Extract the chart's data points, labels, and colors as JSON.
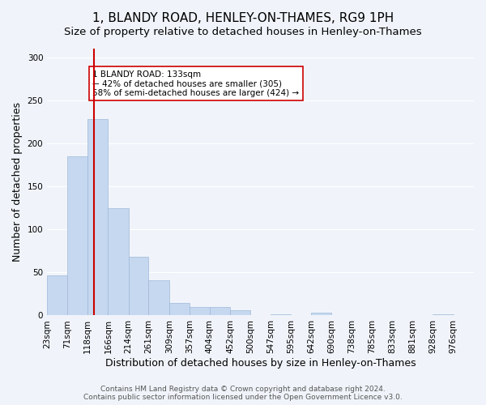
{
  "title": "1, BLANDY ROAD, HENLEY-ON-THAMES, RG9 1PH",
  "subtitle": "Size of property relative to detached houses in Henley-on-Thames",
  "xlabel": "Distribution of detached houses by size in Henley-on-Thames",
  "ylabel": "Number of detached properties",
  "bar_values": [
    47,
    185,
    228,
    125,
    68,
    41,
    15,
    10,
    10,
    6,
    0,
    1,
    0,
    3,
    0,
    0,
    0,
    0,
    0,
    1
  ],
  "bin_labels": [
    "23sqm",
    "71sqm",
    "118sqm",
    "166sqm",
    "214sqm",
    "261sqm",
    "309sqm",
    "357sqm",
    "404sqm",
    "452sqm",
    "500sqm",
    "547sqm",
    "595sqm",
    "642sqm",
    "690sqm",
    "738sqm",
    "785sqm",
    "833sqm",
    "881sqm",
    "928sqm",
    "976sqm"
  ],
  "bin_edges": [
    23,
    71,
    118,
    166,
    214,
    261,
    309,
    357,
    404,
    452,
    500,
    547,
    595,
    642,
    690,
    738,
    785,
    833,
    881,
    928,
    976
  ],
  "bar_color": "#c5d8f0",
  "bar_edge_color": "#a0b8d8",
  "vline_x": 133,
  "vline_color": "#cc0000",
  "annotation_text": "1 BLANDY ROAD: 133sqm\n← 42% of detached houses are smaller (305)\n58% of semi-detached houses are larger (424) →",
  "annotation_box_color": "#ffffff",
  "annotation_box_edge": "#cc0000",
  "ylim": [
    0,
    310
  ],
  "yticks": [
    0,
    50,
    100,
    150,
    200,
    250,
    300
  ],
  "background_color": "#f0f4fa",
  "footer_text": "Contains HM Land Registry data © Crown copyright and database right 2024.\nContains public sector information licensed under the Open Government Licence v3.0.",
  "title_fontsize": 11,
  "subtitle_fontsize": 9.5,
  "xlabel_fontsize": 9,
  "ylabel_fontsize": 9,
  "tick_fontsize": 7.5,
  "footer_fontsize": 6.5
}
